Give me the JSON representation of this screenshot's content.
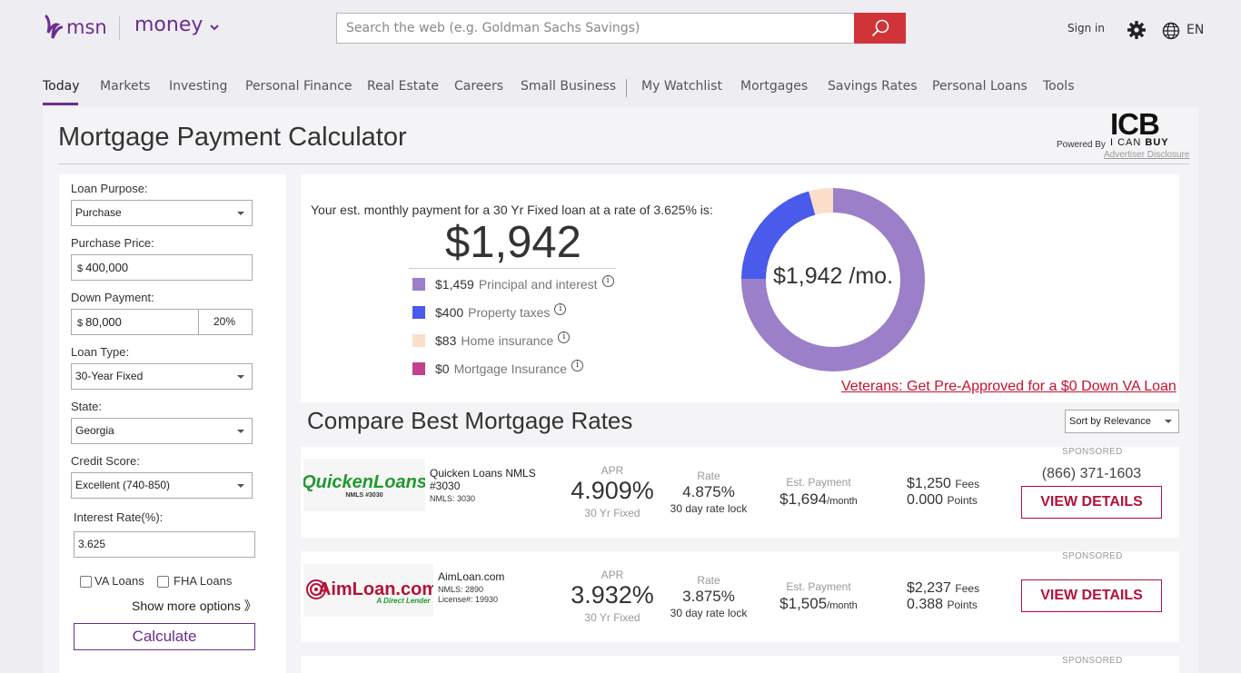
{
  "header": {
    "brand": "msn",
    "section": "money",
    "search_placeholder": "Search the web (e.g. Goldman Sachs Savings)",
    "signin": "Sign in",
    "language": "EN"
  },
  "nav": {
    "items": [
      "Today",
      "Markets",
      "Investing",
      "Personal Finance",
      "Real Estate",
      "Careers",
      "Small Business",
      "My Watchlist",
      "Mortgages",
      "Savings Rates",
      "Personal Loans",
      "Tools"
    ],
    "active": "Today"
  },
  "page": {
    "title": "Mortgage Payment Calculator",
    "powered_by": "Powered By",
    "icb_logo_big": "ICB",
    "icb_logo_small_1": "I CAN ",
    "icb_logo_small_2": "BUY",
    "advertiser_disclosure": "Advertiser Disclosure"
  },
  "form": {
    "loan_purpose_label": "Loan Purpose:",
    "loan_purpose_value": "Purchase",
    "purchase_price_label": "Purchase Price:",
    "currency_symbol": "$",
    "purchase_price_value": "400,000",
    "down_payment_label": "Down Payment:",
    "down_payment_value": "80,000",
    "down_payment_percent": "20%",
    "loan_type_label": "Loan Type:",
    "loan_type_value": "30-Year Fixed",
    "state_label": "State:",
    "state_value": "Georgia",
    "credit_score_label": "Credit Score:",
    "credit_score_value": "Excellent (740-850)",
    "interest_rate_label": "Interest Rate(%):",
    "interest_rate_value": "3.625",
    "va_loans_label": "VA Loans",
    "fha_loans_label": "FHA Loans",
    "show_more": "Show more options 》",
    "calculate": "Calculate"
  },
  "result": {
    "est_text": "Your est. monthly payment for a 30 Yr Fixed loan at a rate of 3.625% is:",
    "monthly_payment": "$1,942",
    "donut_label": "$1,942 /mo.",
    "breakdown": [
      {
        "amount": "$1,459",
        "label": "Principal and interest",
        "value": 1459,
        "color": "#9b7fc8"
      },
      {
        "amount": "$400",
        "label": "Property taxes",
        "value": 400,
        "color": "#4a5aea"
      },
      {
        "amount": "$83",
        "label": "Home insurance",
        "value": 83,
        "color": "#fbdfca"
      },
      {
        "amount": "$0",
        "label": "Mortgage Insurance",
        "value": 0,
        "color": "#c2408c"
      }
    ],
    "va_link": "Veterans: Get Pre-Approved for a $0 Down VA Loan"
  },
  "compare": {
    "title": "Compare Best Mortgage Rates",
    "sort_value": "Sort by Relevance"
  },
  "offers": [
    {
      "sponsored": "SPONSORED",
      "logo_main": "QuickenLoans",
      "logo_sub": "NMLS #3030",
      "name": "Quicken Loans NMLS #3030",
      "nmls": "NMLS: 3030",
      "license": "",
      "apr_label": "APR",
      "apr": "4.909%",
      "apr_sub": "30 Yr Fixed",
      "rate_label": "Rate",
      "rate": "4.875%",
      "rate_lock": "30 day rate lock",
      "payment_label": "Est. Payment",
      "payment": "$1,694",
      "payment_unit": "/month",
      "fees": "$1,250",
      "fees_unit": "Fees",
      "points": "0.000",
      "points_unit": "Points",
      "phone": "(866) 371-1603",
      "button": "VIEW DETAILS"
    },
    {
      "sponsored": "SPONSORED",
      "logo_main": "AimLoan.com",
      "logo_sub": "A Direct Lender",
      "name": "AimLoan.com",
      "nmls": "NMLS: 2890",
      "license": "License#: 19930",
      "apr_label": "APR",
      "apr": "3.932%",
      "apr_sub": "30 Yr Fixed",
      "rate_label": "Rate",
      "rate": "3.875%",
      "rate_lock": "30 day rate lock",
      "payment_label": "Est. Payment",
      "payment": "$1,505",
      "payment_unit": "/month",
      "fees": "$2,237",
      "fees_unit": "Fees",
      "points": "0.388",
      "points_unit": "Points",
      "phone": "",
      "button": "VIEW DETAILS"
    },
    {
      "sponsored": "SPONSORED"
    }
  ]
}
